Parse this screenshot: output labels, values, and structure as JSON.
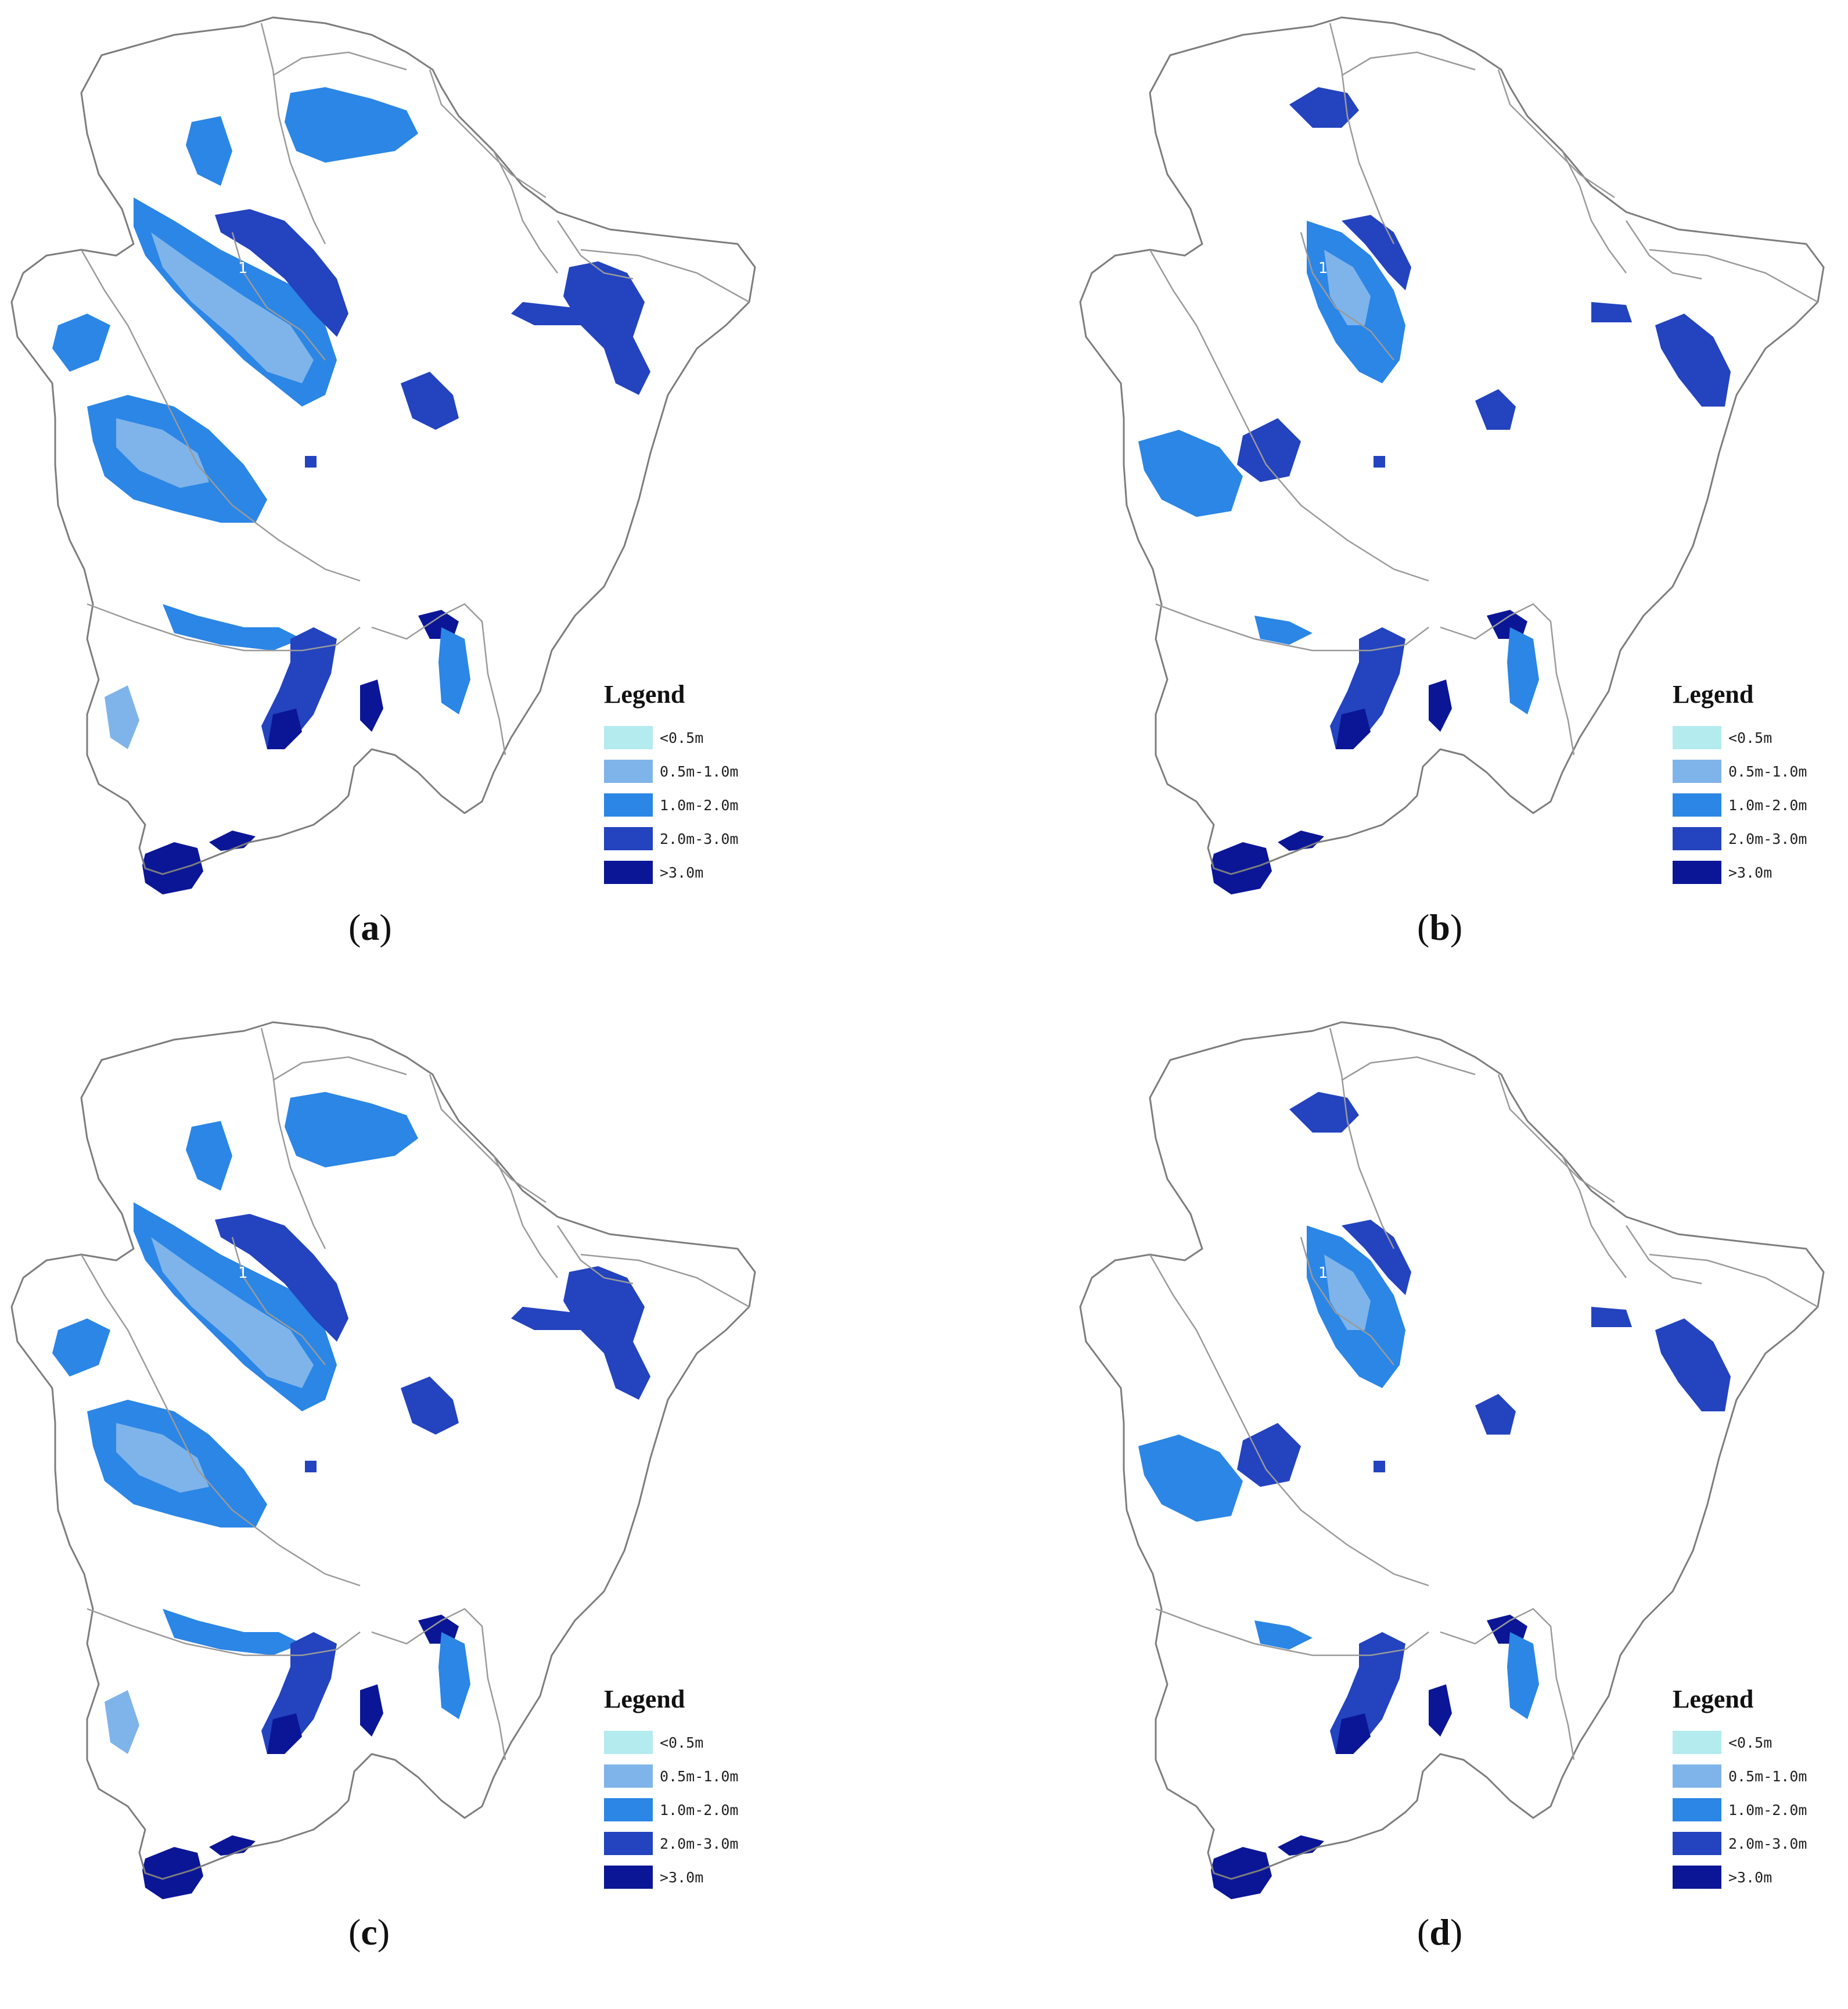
{
  "colors": {
    "lt05": "#b3ebef",
    "r05_10": "#7fb4ea",
    "r10_20": "#2b86e6",
    "r20_30": "#2343bf",
    "gt30": "#0b1696",
    "outline": "#7d7d7d"
  },
  "legend": {
    "title": "Legend",
    "items": [
      {
        "label": "<0.5m",
        "color": "#b3ebef"
      },
      {
        "label": "0.5m-1.0m",
        "color": "#7fb4ea"
      },
      {
        "label": "1.0m-2.0m",
        "color": "#2b86e6"
      },
      {
        "label": "2.0m-3.0m",
        "color": "#2343bf"
      },
      {
        "label": ">3.0m",
        "color": "#0b1696"
      }
    ]
  },
  "panels": [
    {
      "letter": "a",
      "open": "(",
      "close": ")"
    },
    {
      "letter": "b",
      "open": "(",
      "close": ")"
    },
    {
      "letter": "c",
      "open": "(",
      "close": ")"
    },
    {
      "letter": "d",
      "open": "(",
      "close": ")"
    }
  ],
  "map_label": "1"
}
